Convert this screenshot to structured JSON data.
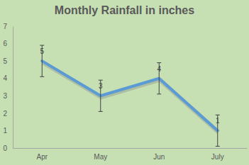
{
  "chart_data": {
    "type": "line",
    "title": "Monthly Rainfall in inches",
    "categories": [
      "Apr",
      "May",
      "Jun",
      "July"
    ],
    "values": [
      5,
      3,
      4,
      1
    ],
    "errors": [
      0.9,
      0.9,
      0.9,
      0.9
    ],
    "color": "#5b9bd5",
    "ylim": [
      0,
      7
    ],
    "yticks": [
      0,
      1,
      2,
      3,
      4,
      5,
      6,
      7
    ],
    "grid": false,
    "data_labels": true
  }
}
